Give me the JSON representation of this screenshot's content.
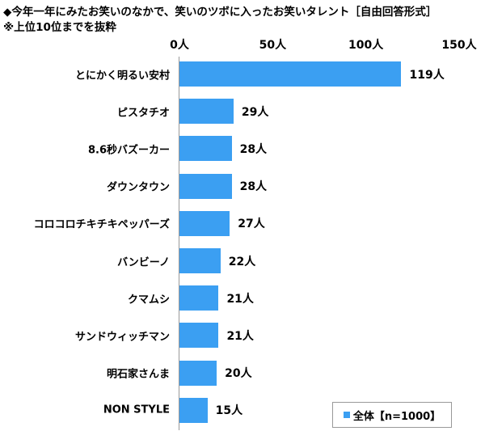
{
  "colors": {
    "bar": "#3b9ff2",
    "axis": "#9a9a9a"
  },
  "chart_data": {
    "type": "bar",
    "orientation": "horizontal",
    "title": "◆今年一年にみたお笑いのなかで、笑いのツボに入ったお笑いタレント［自由回答形式］",
    "subtitle": "※上位10位までを抜粋",
    "categories": [
      "とにかく明るい安村",
      "ピスタチオ",
      "8.6秒バズーカー",
      "ダウンタウン",
      "コロコロチキチキペッパーズ",
      "バンビーノ",
      "クマムシ",
      "サンドウィッチマン",
      "明石家さんま",
      "NON STYLE"
    ],
    "series": [
      {
        "name": "全体【n=1000】",
        "values": [
          119,
          29,
          28,
          28,
          27,
          22,
          21,
          21,
          20,
          15
        ],
        "value_labels": [
          "119人",
          "29人",
          "28人",
          "28人",
          "27人",
          "22人",
          "21人",
          "21人",
          "20人",
          "15人"
        ]
      }
    ],
    "xlim": [
      0,
      150
    ],
    "x_ticks": [
      0,
      50,
      100,
      150
    ],
    "x_tick_labels": [
      "0人",
      "50人",
      "100人",
      "150人"
    ],
    "grid": false,
    "legend_position": "bottom-right"
  }
}
